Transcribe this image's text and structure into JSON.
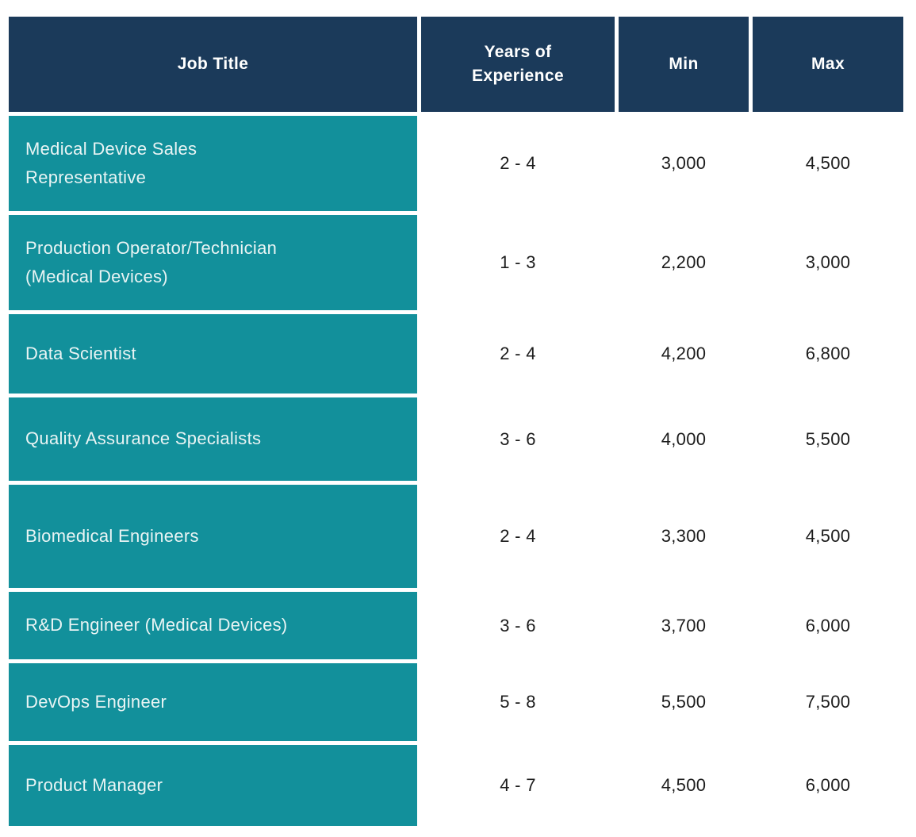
{
  "colors": {
    "header_bg": "#1b3a5a",
    "header_text": "#ffffff",
    "job_title_cell_bg": "#12909b",
    "job_title_cell_text": "#e9f4f4",
    "value_text": "#1c1c1c",
    "background": "#ffffff"
  },
  "chart_data": {
    "type": "table",
    "title": "",
    "columns": [
      "Job Title",
      "Years of Experience",
      "Min",
      "Max"
    ],
    "rows": [
      [
        "Medical Device Sales Representative",
        "2 - 4",
        "3,000",
        "4,500"
      ],
      [
        "Production Operator/Technician (Medical Devices)",
        "1 - 3",
        "2,200",
        "3,000"
      ],
      [
        "Data Scientist",
        "2 - 4",
        "4,200",
        "6,800"
      ],
      [
        "Quality Assurance Specialists",
        "3 - 6",
        "4,000",
        "5,500"
      ],
      [
        "Biomedical Engineers",
        "2 - 4",
        "3,300",
        "4,500"
      ],
      [
        "R&D Engineer (Medical Devices)",
        "3 - 6",
        "3,700",
        "6,000"
      ],
      [
        "DevOps Engineer",
        "5 - 8",
        "5,500",
        "7,500"
      ],
      [
        "Product Manager",
        "4 - 7",
        "4,500",
        "6,000"
      ]
    ]
  }
}
